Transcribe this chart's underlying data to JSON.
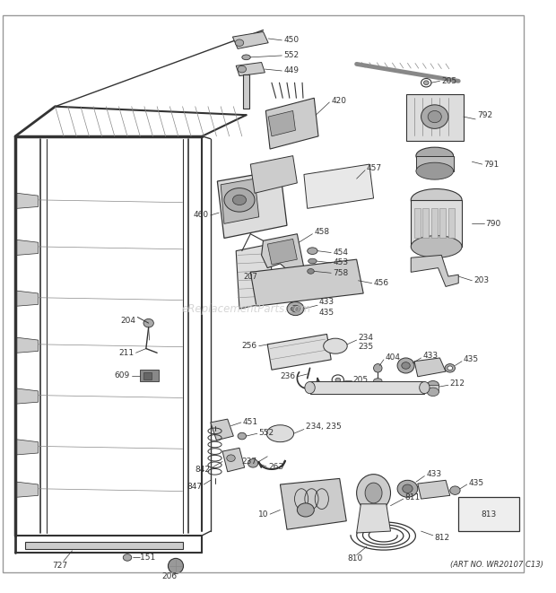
{
  "bg_color": "#ffffff",
  "watermark": "eReplacementParts.com",
  "art_no": "(ART NO. WR20107 C13)",
  "dgray": "#333333",
  "lgray": "#888888",
  "mgray": "#aaaaaa",
  "fgray": "#dddddd"
}
